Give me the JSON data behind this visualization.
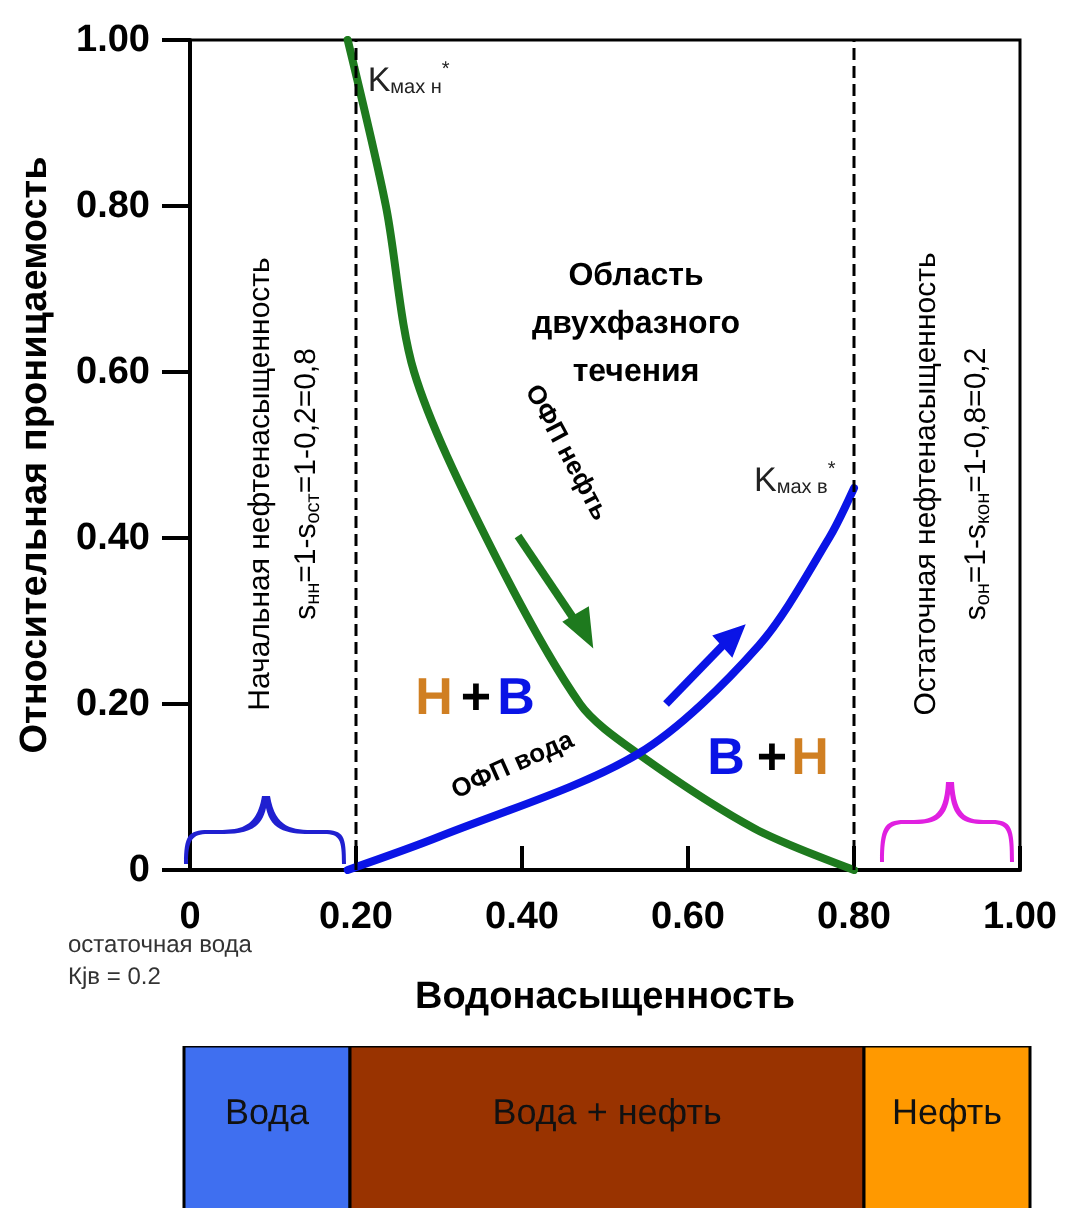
{
  "chart_data": [
    {
      "type": "line",
      "xlabel": "Водонасыщенность",
      "ylabel": "Относительная проницаемость",
      "xlim": [
        0,
        1
      ],
      "ylim": [
        0,
        1
      ],
      "xticks": [
        0,
        {
          "value": 0.2,
          "label": "0.20"
        },
        {
          "value": 0.4,
          "label": "0.40"
        },
        {
          "value": 0.6,
          "label": "0.60"
        },
        {
          "value": 0.8,
          "label": "0.80"
        },
        {
          "value": 1,
          "label": "1.00"
        }
      ],
      "yticks": [
        0,
        {
          "value": 0.2,
          "label": "0.20"
        },
        {
          "value": 0.4,
          "label": "0.40"
        },
        {
          "value": 0.6,
          "label": "0.60"
        },
        {
          "value": 0.8,
          "label": "0.80"
        },
        {
          "value": 1,
          "label": "1.00"
        }
      ],
      "grid": false,
      "marker": "none",
      "line_style": "solid",
      "series": [
        {
          "color": "#1e7a1e",
          "x": [
            0.19,
            0.236,
            0.27,
            0.357,
            0.47,
            0.54,
            0.68,
            0.8
          ],
          "values": [
            1,
            0.8,
            0.6,
            0.4,
            0.2,
            0.14,
            0.05,
            0
          ]
        },
        {
          "color": "#0a14e6",
          "x": [
            0.19,
            0.3,
            0.54,
            0.685,
            0.77,
            0.8
          ],
          "values": [
            0,
            0.04,
            0.14,
            0.27,
            0.4,
            0.46
          ]
        }
      ],
      "ref_lines": [
        {
          "axis": "x",
          "value": 0.2,
          "color": "#000000",
          "line_style": "dashed"
        },
        {
          "axis": "x",
          "value": 0.8,
          "color": "#000000",
          "line_style": "dashed"
        }
      ],
      "annotations": [
        {
          "text": "K$_{мах н}$$^{*}$",
          "x": 0.19,
          "y": 1
        },
        {
          "text": "K$_{мах в}$$^{*}$",
          "x": 0.8,
          "y": 0.46
        },
        "Область\nдвухфазного\nтечения",
        "ОФП нефть",
        "ОФП вода",
        "Н",
        "+",
        "В",
        "В",
        "+",
        "Н",
        "Начальная нефтенасыщенность",
        "s$_{нн}$=1-s$_{ост}$=1-0,2=0,8",
        "Остаточная нефтенасыщенность",
        "s$_{он}$=1-s$_{кон}$=1-0,8=0,2",
        "остаточная вода\nКjв = 0.2"
      ]
    },
    {
      "type": "other",
      "annotations": [
        "Вода",
        "Вода + нефть",
        "Нефть"
      ],
      "colors": [
        "#3f6ff0",
        "#993300",
        "#ff9900"
      ]
    }
  ]
}
